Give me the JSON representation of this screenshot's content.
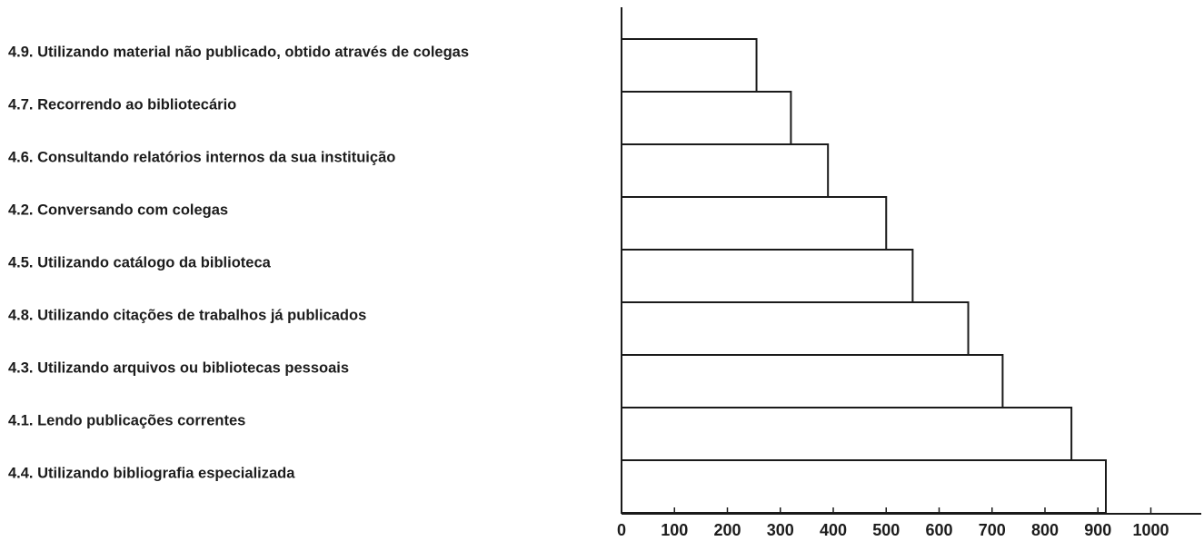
{
  "chart_data": {
    "type": "bar",
    "orientation": "horizontal",
    "categories": [
      "4.9. Utilizando material não publicado, obtido através de colegas",
      "4.7. Recorrendo ao bibliotecário",
      "4.6. Consultando relatórios internos da sua instituição",
      "4.2. Conversando com colegas",
      "4.5. Utilizando catálogo da biblioteca",
      "4.8. Utilizando citações de trabalhos já publicados",
      "4.3. Utilizando arquivos ou bibliotecas pessoais",
      "4.1. Lendo publicações correntes",
      "4.4. Utilizando bibliografia especializada"
    ],
    "values": [
      255,
      320,
      390,
      500,
      550,
      655,
      720,
      850,
      915
    ],
    "xlim": [
      0,
      1100
    ],
    "xticks": [
      0,
      100,
      200,
      300,
      400,
      500,
      600,
      700,
      800,
      900,
      1000
    ],
    "tick_labels": [
      "0",
      "100",
      "200",
      "300",
      "400",
      "500",
      "600",
      "700",
      "800",
      "900",
      "1000"
    ],
    "title": "",
    "xlabel": "",
    "ylabel": "",
    "grid": false,
    "bar_fill": "#ffffff",
    "bar_stroke": "#1a1a1a"
  }
}
